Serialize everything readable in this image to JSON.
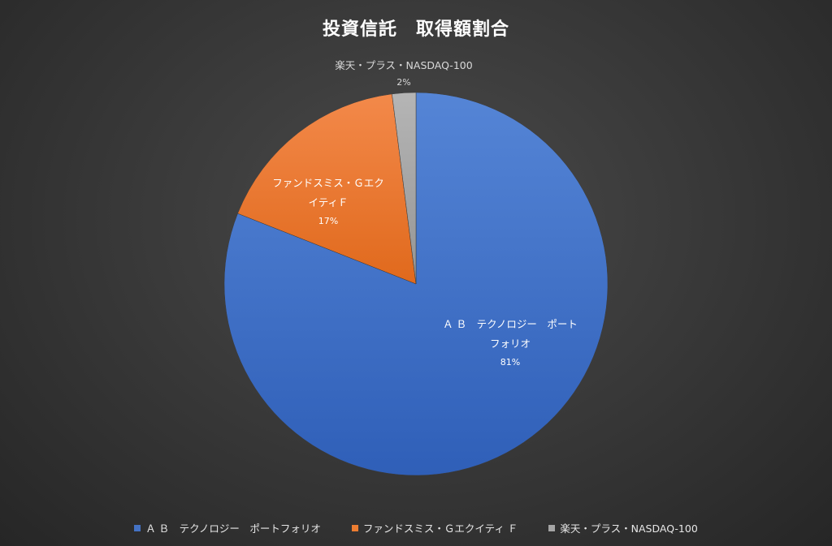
{
  "chart_data": {
    "type": "pie",
    "title": "投資信託　取得額割合",
    "categories": [
      "Ａ Ｂ　テクノロジー　ポートフォリオ",
      "ファンドスミス・Ｇエクイティ Ｆ",
      "楽天・プラス・NASDAQ-100"
    ],
    "values": [
      81,
      17,
      2
    ],
    "value_labels": [
      "81%",
      "17%",
      "2%"
    ],
    "colors": [
      "#4472c4",
      "#ed7d31",
      "#a5a5a5"
    ],
    "legend_position": "bottom",
    "data_labels": [
      {
        "lines": [
          "Ａ Ｂ　テクノロジー　ポート",
          "フォリオ"
        ],
        "pct": "81%"
      },
      {
        "lines": [
          "ファンドスミス・Ｇエク",
          "イティＦ"
        ],
        "pct": "17%"
      },
      {
        "lines": [
          "楽天・プラス・NASDAQ-100"
        ],
        "pct": "2%"
      }
    ],
    "legend": [
      "Ａ Ｂ　テクノロジー　ポートフォリオ",
      "ファンドスミス・Ｇエクイティ Ｆ",
      "楽天・プラス・NASDAQ-100"
    ]
  }
}
